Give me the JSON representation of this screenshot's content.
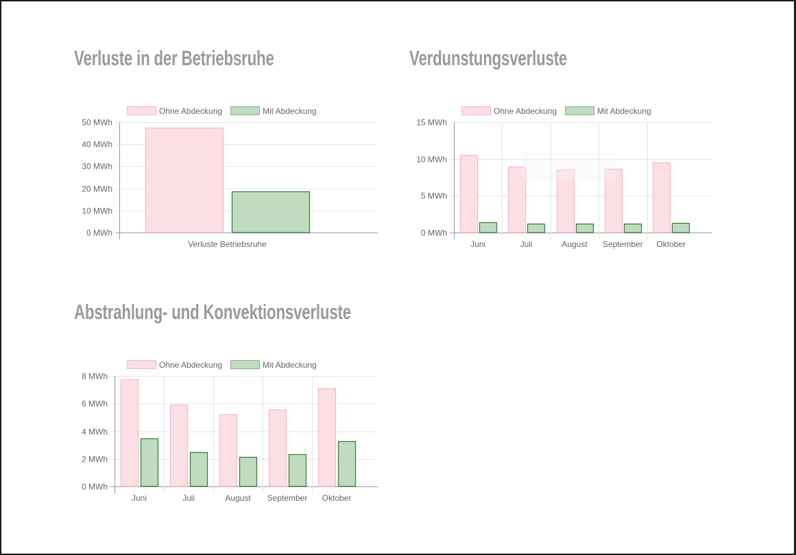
{
  "colors": {
    "ohne_fill": "#fde0e6",
    "ohne_border": "#f7b6c6",
    "mit_fill": "#c0dbbf",
    "mit_border": "#2e7d32",
    "mit_legend_border": "#7fb77f",
    "grid": "#e5e5e5",
    "axis": "#999999",
    "title": "#9a9a9a"
  },
  "chart_data": [
    {
      "id": "betriebsruhe",
      "type": "bar",
      "title": "Verluste in der Betriebsruhe",
      "xlabel": "",
      "ylabel": "",
      "categories": [
        "Verluste Betriebsruhe"
      ],
      "series": [
        {
          "name": "Ohne Abdeckung",
          "values": [
            47.5
          ]
        },
        {
          "name": "Mit Abdeckung",
          "values": [
            18.6
          ]
        }
      ],
      "ylim": [
        0,
        50
      ],
      "yticks": [
        0,
        10,
        20,
        30,
        40,
        50
      ],
      "ytick_labels": [
        "0 MWh",
        "10 MWh",
        "20 MWh",
        "30 MWh",
        "40 MWh",
        "50 MWh"
      ],
      "legend": "top",
      "grid": true
    },
    {
      "id": "verdunstung",
      "type": "bar",
      "title": "Verdunstungsverluste",
      "xlabel": "",
      "ylabel": "",
      "categories": [
        "Juni",
        "Juli",
        "August",
        "September",
        "Oktober"
      ],
      "series": [
        {
          "name": "Ohne Abdeckung",
          "values": [
            10.5,
            8.9,
            8.6,
            8.7,
            9.5
          ]
        },
        {
          "name": "Mit Abdeckung",
          "values": [
            1.4,
            1.2,
            1.2,
            1.2,
            1.3
          ]
        }
      ],
      "ylim": [
        0,
        15
      ],
      "yticks": [
        0,
        5,
        10,
        15
      ],
      "ytick_labels": [
        "0 MWh",
        "5 MWh",
        "10 MWh",
        "15 MWh"
      ],
      "legend": "top",
      "grid": true
    },
    {
      "id": "abstrahlung",
      "type": "bar",
      "title": "Abstrahlung- und Konvektionsverluste",
      "xlabel": "",
      "ylabel": "",
      "categories": [
        "Juni",
        "Juli",
        "August",
        "September",
        "Oktober"
      ],
      "series": [
        {
          "name": "Ohne Abdeckung",
          "values": [
            7.75,
            5.9,
            5.2,
            5.55,
            7.1
          ]
        },
        {
          "name": "Mit Abdeckung",
          "values": [
            3.5,
            2.5,
            2.15,
            2.35,
            3.3
          ]
        }
      ],
      "ylim": [
        0,
        8
      ],
      "yticks": [
        0,
        2,
        4,
        6,
        8
      ],
      "ytick_labels": [
        "0 MWh",
        "2 MWh",
        "4 MWh",
        "6 MWh",
        "8 MWh"
      ],
      "legend": "top",
      "grid": true
    }
  ]
}
